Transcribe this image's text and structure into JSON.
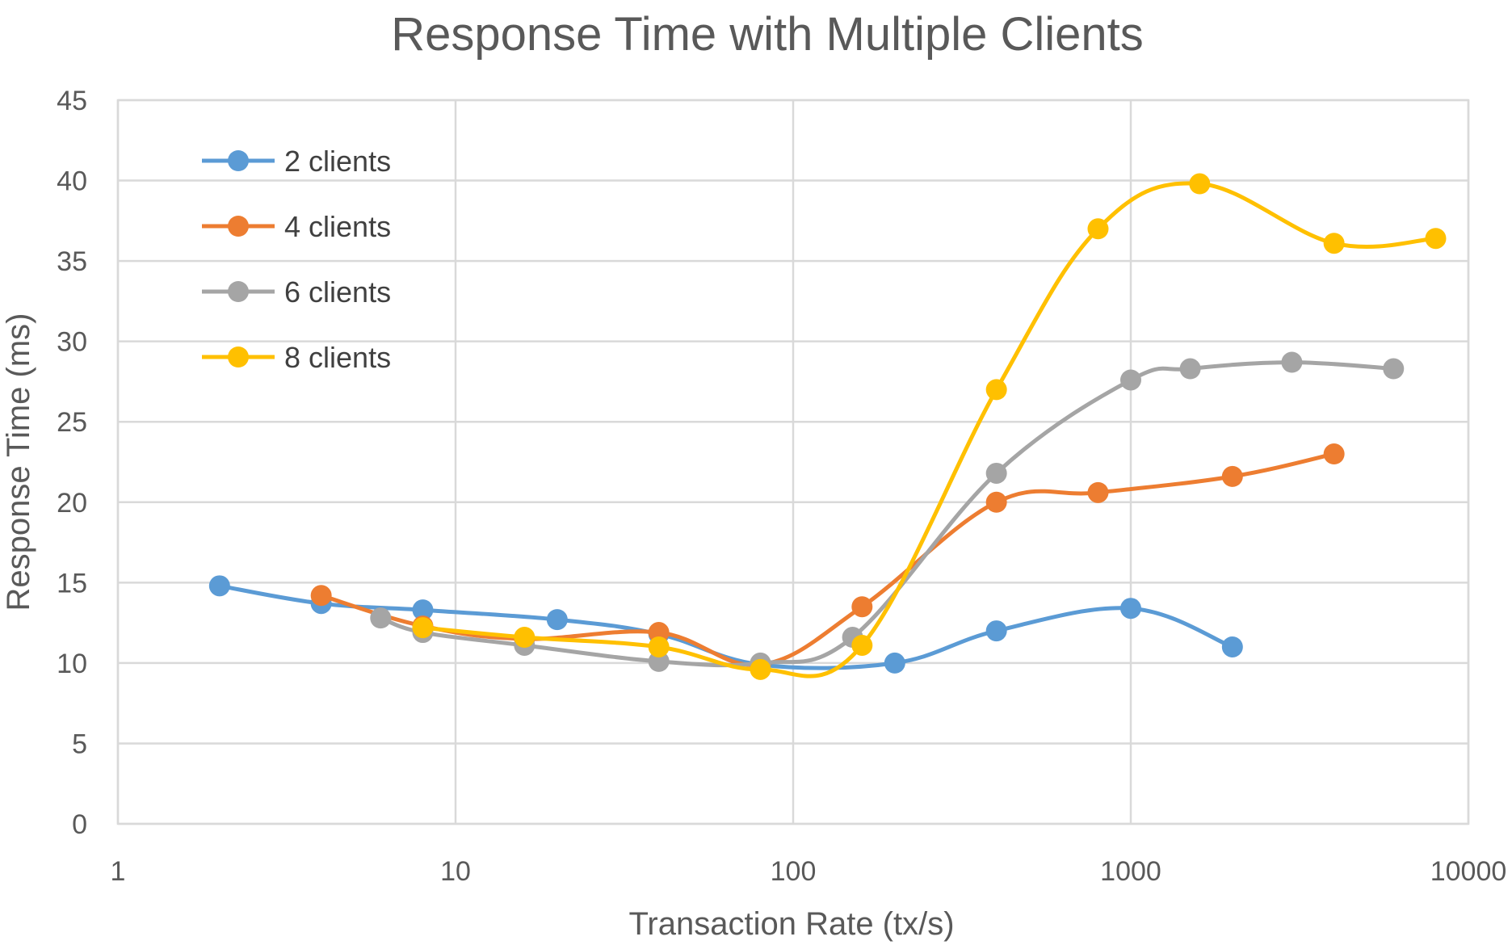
{
  "chart_data": {
    "type": "line",
    "title": "Response Time with Multiple Clients",
    "xlabel": "Transaction Rate (tx/s)",
    "ylabel": "Response Time (ms)",
    "xscale": "log",
    "xlim": [
      1,
      10000
    ],
    "ylim": [
      0,
      45
    ],
    "xticks": [
      "1",
      "10",
      "100",
      "1000",
      "10000"
    ],
    "yticks": [
      "0",
      "5",
      "10",
      "15",
      "20",
      "25",
      "30",
      "35",
      "40",
      "45"
    ],
    "grid": true,
    "smooth": true,
    "legend_position": "top-left inside plot",
    "series": [
      {
        "name": "2 clients",
        "color": "#5B9BD5",
        "points": [
          [
            2,
            14.8
          ],
          [
            4,
            13.7
          ],
          [
            8,
            13.3
          ],
          [
            20,
            12.7
          ],
          [
            40,
            11.8
          ],
          [
            80,
            9.9
          ],
          [
            200,
            10.0
          ],
          [
            400,
            12.0
          ],
          [
            1000,
            13.4
          ],
          [
            2000,
            11.0
          ]
        ]
      },
      {
        "name": "4 clients",
        "color": "#ED7D31",
        "points": [
          [
            4,
            14.2
          ],
          [
            8,
            12.3
          ],
          [
            16,
            11.5
          ],
          [
            40,
            11.9
          ],
          [
            80,
            9.9
          ],
          [
            160,
            13.5
          ],
          [
            400,
            20.0
          ],
          [
            800,
            20.6
          ],
          [
            2000,
            21.6
          ],
          [
            4000,
            23.0
          ]
        ]
      },
      {
        "name": "6 clients",
        "color": "#A5A5A5",
        "points": [
          [
            6,
            12.8
          ],
          [
            8,
            11.9
          ],
          [
            16,
            11.1
          ],
          [
            40,
            10.1
          ],
          [
            80,
            10.0
          ],
          [
            150,
            11.6
          ],
          [
            400,
            21.8
          ],
          [
            1000,
            27.6
          ],
          [
            1500,
            28.3
          ],
          [
            3000,
            28.7
          ],
          [
            6000,
            28.3
          ]
        ]
      },
      {
        "name": "8 clients",
        "color": "#FFC000",
        "points": [
          [
            8,
            12.2
          ],
          [
            16,
            11.6
          ],
          [
            40,
            11.0
          ],
          [
            80,
            9.6
          ],
          [
            160,
            11.1
          ],
          [
            400,
            27.0
          ],
          [
            800,
            37.0
          ],
          [
            1600,
            39.8
          ],
          [
            4000,
            36.1
          ],
          [
            8000,
            36.4
          ]
        ]
      }
    ]
  }
}
